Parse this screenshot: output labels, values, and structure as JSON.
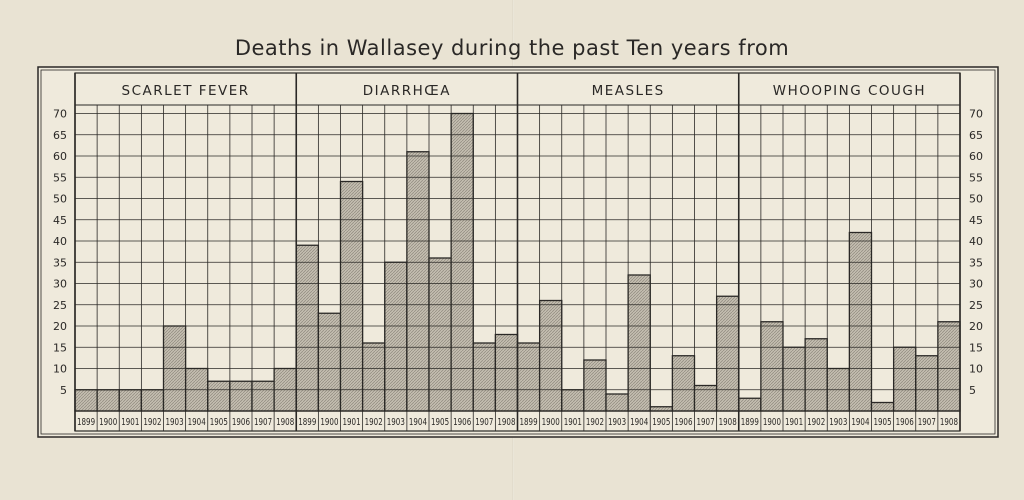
{
  "title": "Deaths in Wallasey during the past Ten years from",
  "chart_data": {
    "type": "bar",
    "title": "Deaths in Wallasey during the past Ten years from",
    "y_ticks": [
      5,
      10,
      15,
      20,
      25,
      30,
      35,
      40,
      45,
      50,
      55,
      60,
      65,
      70
    ],
    "ylim": [
      0,
      72
    ],
    "grid": true,
    "categories": [
      "1899",
      "1900",
      "1901",
      "1902",
      "1903",
      "1904",
      "1905",
      "1906",
      "1907",
      "1908"
    ],
    "panels": [
      {
        "name": "SCARLET FEVER",
        "values": [
          5,
          5,
          5,
          5,
          20,
          10,
          7,
          7,
          7,
          10
        ]
      },
      {
        "name": "DIARRHŒA",
        "values": [
          39,
          23,
          54,
          16,
          35,
          61,
          36,
          70,
          16,
          18
        ]
      },
      {
        "name": "MEASLES",
        "values": [
          16,
          26,
          5,
          12,
          4,
          32,
          1,
          13,
          6,
          27
        ]
      },
      {
        "name": "WHOOPING COUGH",
        "values": [
          3,
          21,
          15,
          17,
          10,
          42,
          2,
          15,
          13,
          21
        ]
      }
    ]
  },
  "colors": {
    "ink": "#2a2826",
    "fill": "#bdb7aa",
    "paper": "#e9e3d3",
    "box": "#efeadc"
  }
}
